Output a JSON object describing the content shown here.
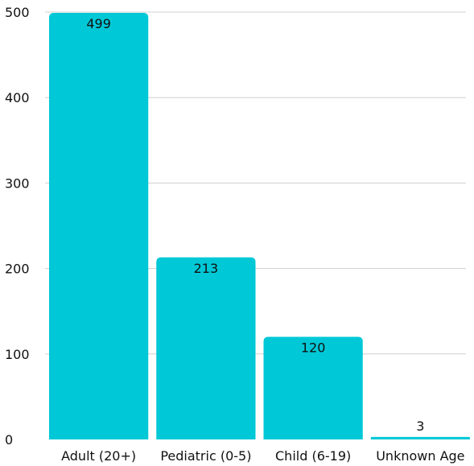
{
  "chart_data": {
    "type": "bar",
    "categories": [
      "Adult (20+)",
      "Pediatric (0-5)",
      "Child (6-19)",
      "Unknown Age"
    ],
    "values": [
      499,
      213,
      120,
      3
    ],
    "data_labels": [
      "499",
      "213",
      "120",
      "3"
    ],
    "title": "",
    "xlabel": "",
    "ylabel": "",
    "ylim": [
      0,
      500
    ],
    "yticks": [
      0,
      100,
      200,
      300,
      400,
      500
    ],
    "ytick_labels": [
      "0",
      "100",
      "200",
      "300",
      "400",
      "500"
    ],
    "grid": true,
    "legend": "none",
    "bar_color": "#00c8d7",
    "grid_color": "#cfcfcf"
  }
}
